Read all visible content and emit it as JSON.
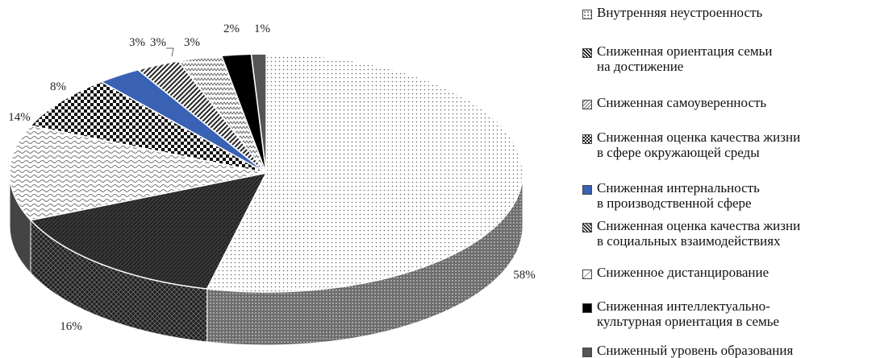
{
  "chart_data": {
    "type": "pie",
    "three_d": true,
    "slices": [
      {
        "name": "Внутренняя неустроенность",
        "value": 58,
        "label": "58%",
        "pattern": "dots",
        "color": "#e6e6e6"
      },
      {
        "name": "Сниженная ориентация семьи\nна достижение",
        "value": 16,
        "label": "16%",
        "pattern": "dark-diagonal",
        "color": "#2e2e2e"
      },
      {
        "name": "Сниженная самоуверенность",
        "value": 14,
        "label": "14%",
        "pattern": "waves",
        "color": "#d9d9d9"
      },
      {
        "name": "Сниженная оценка качества жизни\nв сфере окружающей среды",
        "value": 8,
        "label": "8%",
        "pattern": "checker",
        "color": "#1a1a1a"
      },
      {
        "name": "Сниженная интернальность\nв производственной сфере",
        "value": 3,
        "label": "3%",
        "pattern": "solid-blue",
        "color": "#3a62b4"
      },
      {
        "name": "Сниженная оценка качества жизни\nв социальных взаимодействиях",
        "value": 3,
        "label": "3%",
        "pattern": "diagonal-stripes",
        "color": "#555555"
      },
      {
        "name": "Сниженное дистанцирование",
        "value": 3,
        "label": "3%",
        "pattern": "zigzag",
        "color": "#cfcfcf"
      },
      {
        "name": "Сниженная интеллектуально-\nкультурная ориентация в семье",
        "value": 2,
        "label": "2%",
        "pattern": "solid-black",
        "color": "#000000"
      },
      {
        "name": "Сниженный уровень образования",
        "value": 1,
        "label": "1%",
        "pattern": "solid-gray",
        "color": "#555555"
      }
    ],
    "legend_position": "right",
    "legend_order": [
      0,
      1,
      2,
      3,
      4,
      5,
      6,
      7,
      8
    ]
  }
}
